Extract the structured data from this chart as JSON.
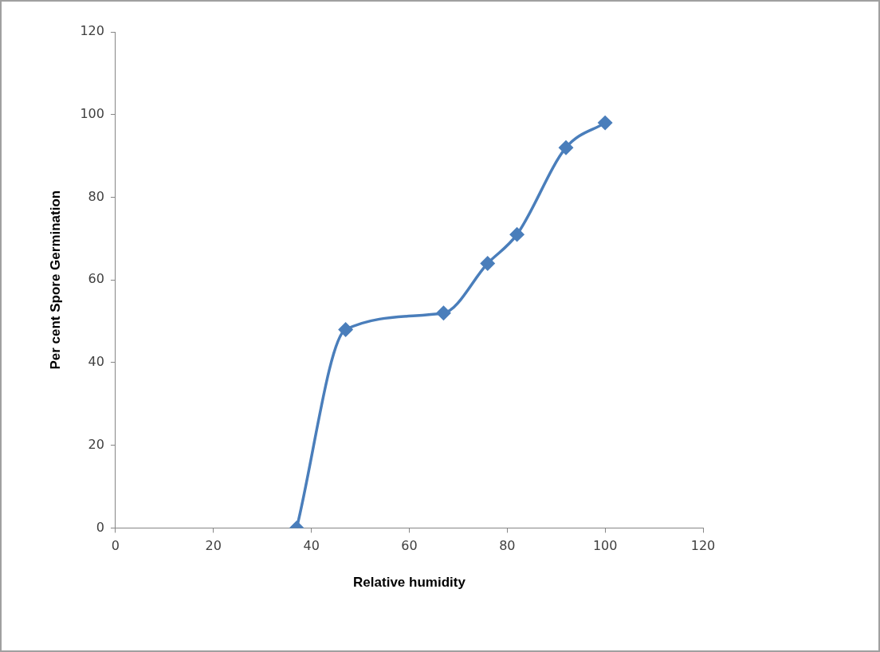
{
  "chart_data": {
    "type": "line",
    "xlabel": "Relative humidity",
    "ylabel": "Per cent Spore Germination",
    "x": [
      37,
      47,
      67,
      76,
      82,
      92,
      100
    ],
    "series": [
      {
        "color": "#4a7ebb",
        "values": [
          0,
          48,
          52,
          64,
          71,
          92,
          98
        ]
      }
    ],
    "xlim": [
      0,
      120
    ],
    "xticks": [
      0,
      20,
      40,
      60,
      80,
      100,
      120
    ],
    "ylim": [
      0,
      120
    ],
    "yticks": [
      0,
      20,
      40,
      60,
      80,
      100,
      120
    ],
    "grid": false,
    "legend": false,
    "marker": "diamond",
    "line_style": "solid"
  }
}
